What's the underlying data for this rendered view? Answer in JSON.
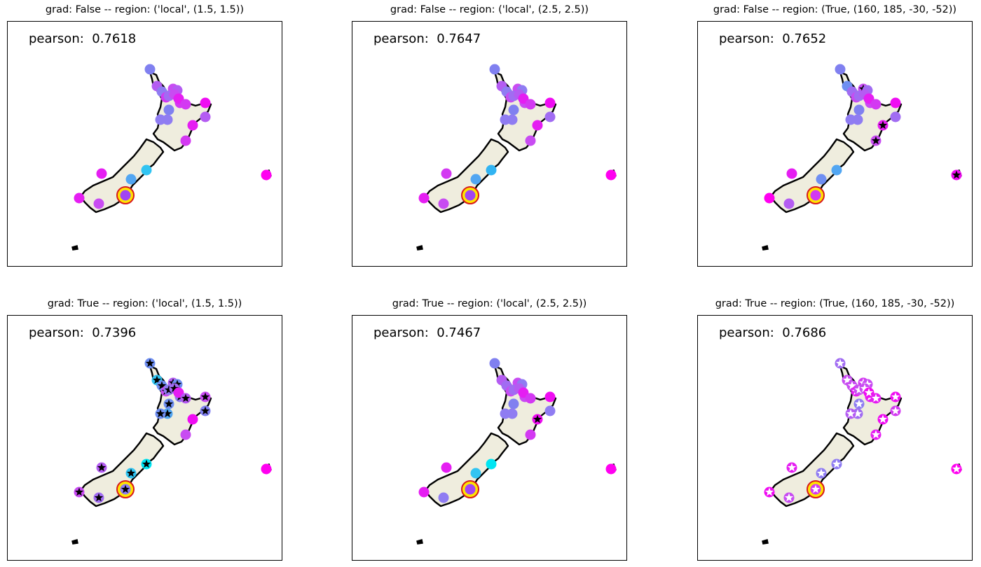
{
  "colors": {
    "land_fill": "#efedde",
    "coast": "#000000",
    "highlight_ring": "#d7191c",
    "highlight_fill": "#ffe600",
    "star_black": "#000000",
    "star_white": "#ffffff"
  },
  "chart_data": [
    {
      "type": "scatter",
      "title": "grad: False -- region: ('local', (1.5, 1.5))",
      "annotation": "pearson:  0.7618",
      "marker_style": "circle",
      "points": [
        [
          0,
          "#8080f0"
        ],
        [
          1,
          "#b45cf2"
        ],
        [
          2,
          "#8f7cf2"
        ],
        [
          3,
          "#d339f2"
        ],
        [
          4,
          "#c84cf2"
        ],
        [
          5,
          "#a16cf2"
        ],
        [
          6,
          "#b45cf2"
        ],
        [
          7,
          "#d339f2"
        ],
        [
          8,
          "#c84cf2"
        ],
        [
          9,
          "#e51ef2"
        ],
        [
          10,
          "#d339f2"
        ],
        [
          11,
          "#ef0cf2"
        ],
        [
          12,
          "#8080f0"
        ],
        [
          13,
          "#8f7cf2"
        ],
        [
          14,
          "#8f7cf2"
        ],
        [
          15,
          "#e51ef2"
        ],
        [
          16,
          "#b45cf2"
        ],
        [
          17,
          "#d339f2"
        ],
        [
          18,
          "#31c4f2"
        ],
        [
          19,
          "#52a6f2"
        ],
        [
          20,
          "#e51ef2"
        ],
        [
          21,
          "#a145f2"
        ],
        [
          22,
          "#e51ef2"
        ],
        [
          23,
          "#c84cf2"
        ],
        [
          24,
          "#ff00f0"
        ]
      ],
      "starred": [],
      "star_color": ""
    },
    {
      "type": "scatter",
      "title": "grad: False -- region: ('local', (2.5, 2.5))",
      "annotation": "pearson:  0.7647",
      "marker_style": "circle",
      "points": [
        [
          0,
          "#8080f0"
        ],
        [
          1,
          "#b45cf2"
        ],
        [
          2,
          "#8f7cf2"
        ],
        [
          3,
          "#c84cf2"
        ],
        [
          4,
          "#c84cf2"
        ],
        [
          5,
          "#a16cf2"
        ],
        [
          6,
          "#8f7cf2"
        ],
        [
          7,
          "#c84cf2"
        ],
        [
          8,
          "#b45cf2"
        ],
        [
          9,
          "#e51ef2"
        ],
        [
          10,
          "#d339f2"
        ],
        [
          11,
          "#ef0cf2"
        ],
        [
          12,
          "#8080f0"
        ],
        [
          13,
          "#8f7cf2"
        ],
        [
          14,
          "#8f7cf2"
        ],
        [
          15,
          "#e51ef2"
        ],
        [
          16,
          "#a16cf2"
        ],
        [
          17,
          "#c84cf2"
        ],
        [
          18,
          "#31b4f2"
        ],
        [
          19,
          "#52a6f2"
        ],
        [
          20,
          "#d339f2"
        ],
        [
          21,
          "#a145f2"
        ],
        [
          22,
          "#e51ef2"
        ],
        [
          23,
          "#c84cf2"
        ],
        [
          24,
          "#ff00f0"
        ]
      ],
      "starred": [],
      "star_color": ""
    },
    {
      "type": "scatter",
      "title": "grad: False -- region: (True, (160, 185, -30, -52))",
      "annotation": "pearson:  0.7652",
      "marker_style": "circle",
      "points": [
        [
          0,
          "#8080f0"
        ],
        [
          1,
          "#6f8ff2"
        ],
        [
          2,
          "#a16cf2"
        ],
        [
          3,
          "#c84cf2"
        ],
        [
          4,
          "#c84cf2"
        ],
        [
          5,
          "#a16cf2"
        ],
        [
          6,
          "#a16cf2"
        ],
        [
          7,
          "#c84cf2"
        ],
        [
          8,
          "#b45cf2"
        ],
        [
          9,
          "#e51ef2"
        ],
        [
          10,
          "#d339f2"
        ],
        [
          11,
          "#ef0cf2"
        ],
        [
          12,
          "#8080f0"
        ],
        [
          13,
          "#8f7cf2"
        ],
        [
          14,
          "#8f7cf2"
        ],
        [
          15,
          "#e51ef2"
        ],
        [
          16,
          "#a16cf2"
        ],
        [
          17,
          "#c84cf2"
        ],
        [
          18,
          "#52a6f2"
        ],
        [
          19,
          "#6f8ff2"
        ],
        [
          20,
          "#e51ef2"
        ],
        [
          21,
          "#d339f2"
        ],
        [
          22,
          "#ff00f0"
        ],
        [
          23,
          "#b45cf2"
        ],
        [
          24,
          "#ef0cf2"
        ]
      ],
      "starred": [
        4,
        15,
        17,
        24
      ],
      "star_color": "#000000"
    },
    {
      "type": "scatter",
      "title": "grad: True -- region: ('local', (1.5, 1.5))",
      "annotation": "pearson:  0.7396",
      "marker_style": "circle",
      "points": [
        [
          0,
          "#6f8ff2"
        ],
        [
          1,
          "#31c4f2"
        ],
        [
          2,
          "#6f8ff2"
        ],
        [
          3,
          "#c84cf2"
        ],
        [
          4,
          "#b45cf2"
        ],
        [
          5,
          "#8f7cf2"
        ],
        [
          6,
          "#6f8ff2"
        ],
        [
          7,
          "#8f7cf2"
        ],
        [
          8,
          "#a16cf2"
        ],
        [
          9,
          "#e51ef2"
        ],
        [
          10,
          "#b45cf2"
        ],
        [
          11,
          "#c84cf2"
        ],
        [
          12,
          "#6f8ff2"
        ],
        [
          13,
          "#52a6f2"
        ],
        [
          14,
          "#6f8ff2"
        ],
        [
          15,
          "#ef0cf2"
        ],
        [
          16,
          "#8080f0"
        ],
        [
          17,
          "#c84cf2"
        ],
        [
          18,
          "#00e5f2"
        ],
        [
          19,
          "#31c4f2"
        ],
        [
          20,
          "#b45cf2"
        ],
        [
          21,
          "#8f7cf2"
        ],
        [
          22,
          "#c84cf2"
        ],
        [
          23,
          "#a16cf2"
        ],
        [
          24,
          "#ff00f0"
        ]
      ],
      "starred": [
        0,
        1,
        2,
        3,
        4,
        5,
        6,
        7,
        8,
        10,
        11,
        12,
        13,
        14,
        16,
        18,
        19,
        20,
        21,
        22,
        23
      ],
      "star_color": "#000000"
    },
    {
      "type": "scatter",
      "title": "grad: True -- region: ('local', (2.5, 2.5))",
      "annotation": "pearson:  0.7467",
      "marker_style": "circle",
      "points": [
        [
          0,
          "#8080f0"
        ],
        [
          1,
          "#b45cf2"
        ],
        [
          2,
          "#a16cf2"
        ],
        [
          3,
          "#c84cf2"
        ],
        [
          4,
          "#c84cf2"
        ],
        [
          5,
          "#a16cf2"
        ],
        [
          6,
          "#8f7cf2"
        ],
        [
          7,
          "#c84cf2"
        ],
        [
          8,
          "#b45cf2"
        ],
        [
          9,
          "#e51ef2"
        ],
        [
          10,
          "#d339f2"
        ],
        [
          11,
          "#ef0cf2"
        ],
        [
          12,
          "#8080f0"
        ],
        [
          13,
          "#8f7cf2"
        ],
        [
          14,
          "#8f7cf2"
        ],
        [
          15,
          "#ef0cf2"
        ],
        [
          16,
          "#8f7cf2"
        ],
        [
          17,
          "#d339f2"
        ],
        [
          18,
          "#00e5f2"
        ],
        [
          19,
          "#31c4f2"
        ],
        [
          20,
          "#e51ef2"
        ],
        [
          21,
          "#a145f2"
        ],
        [
          22,
          "#e51ef2"
        ],
        [
          23,
          "#8f7cf2"
        ],
        [
          24,
          "#ff00f0"
        ]
      ],
      "starred": [
        15
      ],
      "star_color": "#000000"
    },
    {
      "type": "scatter",
      "title": "grad: True -- region: (True, (160, 185, -30, -52))",
      "annotation": "pearson:  0.7686",
      "marker_style": "circle",
      "points": [
        [
          0,
          "#a16cf2"
        ],
        [
          1,
          "#c84cf2"
        ],
        [
          2,
          "#c84cf2"
        ],
        [
          3,
          "#e51ef2"
        ],
        [
          4,
          "#d339f2"
        ],
        [
          5,
          "#c84cf2"
        ],
        [
          6,
          "#c84cf2"
        ],
        [
          7,
          "#e51ef2"
        ],
        [
          8,
          "#c84cf2"
        ],
        [
          9,
          "#ef0cf2"
        ],
        [
          10,
          "#e51ef2"
        ],
        [
          11,
          "#ef0cf2"
        ],
        [
          12,
          "#8f7cf2"
        ],
        [
          13,
          "#a16cf2"
        ],
        [
          14,
          "#b45cf2"
        ],
        [
          15,
          "#ef0cf2"
        ],
        [
          16,
          "#d339f2"
        ],
        [
          17,
          "#e51ef2"
        ],
        [
          18,
          "#8f7cf2"
        ],
        [
          19,
          "#8f7cf2"
        ],
        [
          20,
          "#e51ef2"
        ],
        [
          21,
          "#d339f2"
        ],
        [
          22,
          "#ef0cf2"
        ],
        [
          23,
          "#c84cf2"
        ],
        [
          24,
          "#ff00f0"
        ]
      ],
      "starred": [
        0,
        1,
        2,
        3,
        4,
        5,
        6,
        7,
        8,
        9,
        10,
        11,
        12,
        13,
        14,
        15,
        16,
        17,
        18,
        19,
        20,
        21,
        22,
        23,
        24
      ],
      "star_color": "#ffffff"
    }
  ]
}
